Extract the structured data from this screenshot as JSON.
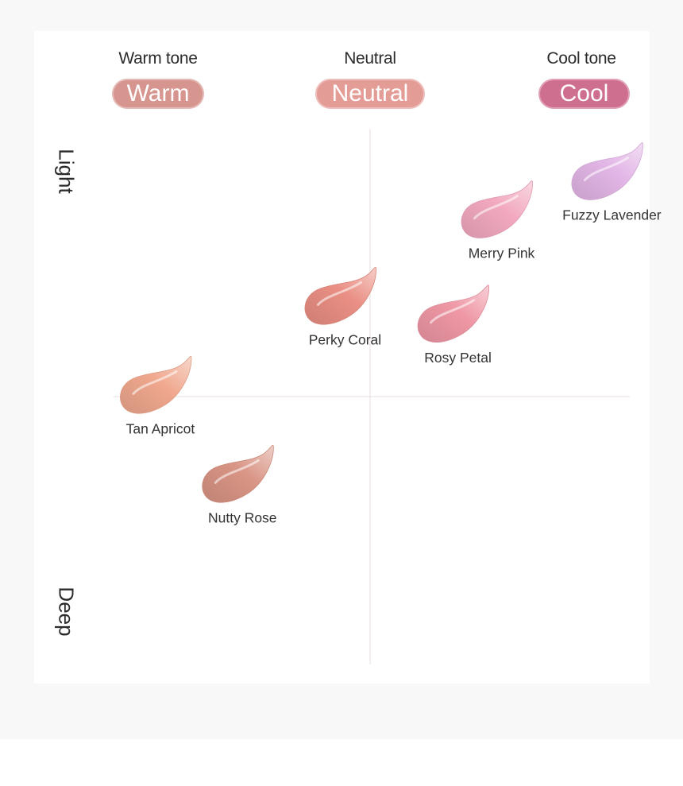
{
  "columns": [
    {
      "heading": "Warm tone",
      "pill": "Warm",
      "color": "#d6968f"
    },
    {
      "heading": "Neutral",
      "pill": "Neutral",
      "color": "#e49c97"
    },
    {
      "heading": "Cool tone",
      "pill": "Cool",
      "color": "#cf6f8f"
    }
  ],
  "axes": {
    "top": "Light",
    "bottom": "Deep"
  },
  "chart_data": {
    "type": "scatter",
    "x_axis": {
      "categories": [
        "Warm tone",
        "Neutral",
        "Cool tone"
      ],
      "range": [
        -1,
        1
      ]
    },
    "y_axis": {
      "low": "Deep",
      "high": "Light",
      "range": [
        -1,
        1
      ]
    },
    "grid": false,
    "points": [
      {
        "name": "Fuzzy Lavender",
        "x": 0.93,
        "y": 0.87,
        "color": "#e2b6e6"
      },
      {
        "name": "Merry Pink",
        "x": 0.5,
        "y": 0.72,
        "color": "#f2a9bf"
      },
      {
        "name": "Perky Coral",
        "x": -0.11,
        "y": 0.38,
        "color": "#ea8f84"
      },
      {
        "name": "Rosy Petal",
        "x": 0.33,
        "y": 0.31,
        "color": "#ef97a5"
      },
      {
        "name": "Tan Apricot",
        "x": -0.83,
        "y": 0.03,
        "color": "#f0a88e"
      },
      {
        "name": "Nutty Rose",
        "x": -0.51,
        "y": -0.32,
        "color": "#d99585"
      }
    ]
  }
}
